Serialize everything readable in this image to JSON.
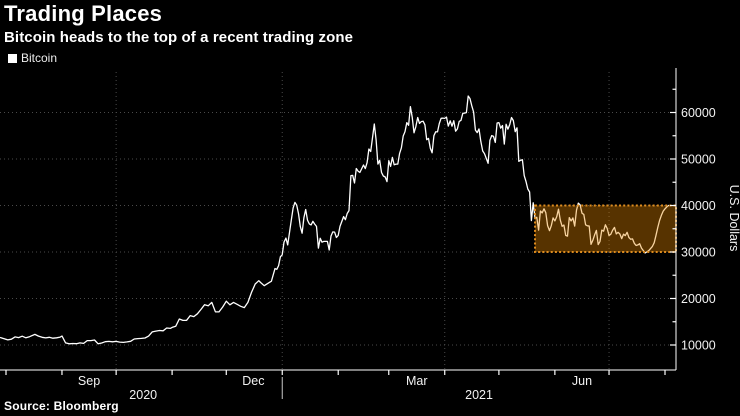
{
  "header": {
    "title": "Trading Places",
    "subtitle": "Bitcoin heads to the top of a recent trading zone"
  },
  "legend": {
    "label": "Bitcoin"
  },
  "source": "Source: Bloomberg",
  "colors": {
    "background": "#000000",
    "text": "#ffffff",
    "line": "#ffffff",
    "grid": "#4a4a4a",
    "axis": "#ffffff",
    "highlight_fill": "#ED8B00",
    "highlight_fill_opacity": 0.37,
    "highlight_border": "#DE8C1E"
  },
  "chart_data": {
    "type": "line",
    "title": "Trading Places",
    "subtitle": "Bitcoin heads to the top of a recent trading zone",
    "x_unit": "days since 2020-08-01",
    "x_range_days": [
      -3,
      371
    ],
    "grid": true,
    "legend_position": "top-left",
    "y_axis": {
      "label": "U.S. Dollars",
      "major_ticks": [
        10000,
        20000,
        30000,
        40000,
        50000,
        60000
      ],
      "minor_ticks": [
        15000,
        25000,
        35000,
        45000,
        55000,
        65000
      ],
      "range": [
        4600,
        69500
      ]
    },
    "x_axis": {
      "month_ticks_days": [
        0,
        31,
        61,
        92,
        122,
        153,
        184,
        212,
        243,
        273,
        304,
        334,
        365
      ],
      "quarter_grid_days": [
        61,
        153,
        243,
        334
      ],
      "month_labels": [
        {
          "label": "Sep",
          "day": 46
        },
        {
          "label": "Dec",
          "day": 137
        },
        {
          "label": "Mar",
          "day": 227.5
        },
        {
          "label": "Jun",
          "day": 319
        }
      ],
      "year_labels": [
        {
          "label": "2020",
          "day": 76
        },
        {
          "label": "2021",
          "day": 262
        }
      ],
      "year_divider_day": 153
    },
    "highlight_zone": {
      "from_day": 293,
      "low": 30000,
      "high": 40000,
      "fill": "#ED8B00",
      "fill_opacity": 0.37,
      "border": "#DE8C1E"
    },
    "series": [
      {
        "name": "Bitcoin",
        "color": "#ffffff",
        "points": [
          [
            -3,
            11600
          ],
          [
            -1,
            11350
          ],
          [
            1,
            11100
          ],
          [
            3,
            11250
          ],
          [
            5,
            11750
          ],
          [
            7,
            11600
          ],
          [
            9,
            11900
          ],
          [
            11,
            11550
          ],
          [
            13,
            11780
          ],
          [
            16,
            12280
          ],
          [
            18,
            11920
          ],
          [
            20,
            11660
          ],
          [
            22,
            11530
          ],
          [
            24,
            11660
          ],
          [
            26,
            11470
          ],
          [
            28,
            11540
          ],
          [
            30,
            11700
          ],
          [
            31,
            11930
          ],
          [
            33,
            10450
          ],
          [
            35,
            10250
          ],
          [
            37,
            10330
          ],
          [
            39,
            10280
          ],
          [
            41,
            10450
          ],
          [
            43,
            10340
          ],
          [
            45,
            10950
          ],
          [
            47,
            10940
          ],
          [
            49,
            11080
          ],
          [
            51,
            10250
          ],
          [
            53,
            10440
          ],
          [
            55,
            10720
          ],
          [
            57,
            10780
          ],
          [
            59,
            10690
          ],
          [
            61,
            10780
          ],
          [
            63,
            10620
          ],
          [
            65,
            10550
          ],
          [
            67,
            10670
          ],
          [
            69,
            10800
          ],
          [
            71,
            11300
          ],
          [
            73,
            11380
          ],
          [
            75,
            11420
          ],
          [
            77,
            11510
          ],
          [
            79,
            11920
          ],
          [
            81,
            12810
          ],
          [
            83,
            12990
          ],
          [
            85,
            13120
          ],
          [
            87,
            13050
          ],
          [
            89,
            13650
          ],
          [
            91,
            13560
          ],
          [
            92,
            13780
          ],
          [
            94,
            14020
          ],
          [
            96,
            15600
          ],
          [
            98,
            15300
          ],
          [
            100,
            15320
          ],
          [
            102,
            16320
          ],
          [
            104,
            16100
          ],
          [
            106,
            16720
          ],
          [
            108,
            17650
          ],
          [
            110,
            18660
          ],
          [
            112,
            18420
          ],
          [
            114,
            19160
          ],
          [
            116,
            17150
          ],
          [
            118,
            17110
          ],
          [
            120,
            18180
          ],
          [
            122,
            19420
          ],
          [
            124,
            18650
          ],
          [
            126,
            19170
          ],
          [
            128,
            18760
          ],
          [
            130,
            18320
          ],
          [
            132,
            18040
          ],
          [
            134,
            19170
          ],
          [
            136,
            21310
          ],
          [
            138,
            23110
          ],
          [
            140,
            23820
          ],
          [
            141,
            23450
          ],
          [
            143,
            22750
          ],
          [
            145,
            23240
          ],
          [
            147,
            23730
          ],
          [
            149,
            26440
          ],
          [
            150,
            26280
          ],
          [
            151,
            27080
          ],
          [
            152,
            28990
          ],
          [
            153,
            29370
          ],
          [
            154,
            32130
          ],
          [
            155,
            33000
          ],
          [
            156,
            31530
          ],
          [
            158,
            36850
          ],
          [
            159,
            39450
          ],
          [
            160,
            40670
          ],
          [
            161,
            40090
          ],
          [
            162,
            38250
          ],
          [
            163,
            35470
          ],
          [
            164,
            34050
          ],
          [
            165,
            37380
          ],
          [
            166,
            39140
          ],
          [
            167,
            36830
          ],
          [
            168,
            36050
          ],
          [
            169,
            35830
          ],
          [
            170,
            36610
          ],
          [
            171,
            36000
          ],
          [
            172,
            35510
          ],
          [
            173,
            30830
          ],
          [
            174,
            32950
          ],
          [
            175,
            32100
          ],
          [
            176,
            32280
          ],
          [
            178,
            32270
          ],
          [
            179,
            30430
          ],
          [
            180,
            33440
          ],
          [
            181,
            34320
          ],
          [
            182,
            34270
          ],
          [
            183,
            33110
          ],
          [
            184,
            33540
          ],
          [
            185,
            35510
          ],
          [
            187,
            37620
          ],
          [
            188,
            36940
          ],
          [
            189,
            38290
          ],
          [
            190,
            38900
          ],
          [
            191,
            46420
          ],
          [
            192,
            46480
          ],
          [
            193,
            44830
          ],
          [
            194,
            47960
          ],
          [
            195,
            47370
          ],
          [
            196,
            47110
          ],
          [
            198,
            48720
          ],
          [
            199,
            47930
          ],
          [
            200,
            49220
          ],
          [
            201,
            52140
          ],
          [
            202,
            51610
          ],
          [
            204,
            57530
          ],
          [
            205,
            54120
          ],
          [
            206,
            48900
          ],
          [
            207,
            49710
          ],
          [
            208,
            47110
          ],
          [
            209,
            46340
          ],
          [
            210,
            46130
          ],
          [
            211,
            45140
          ],
          [
            212,
            49630
          ],
          [
            213,
            48400
          ],
          [
            214,
            50350
          ],
          [
            215,
            48750
          ],
          [
            216,
            48900
          ],
          [
            217,
            48910
          ],
          [
            218,
            51210
          ],
          [
            219,
            52410
          ],
          [
            220,
            54940
          ],
          [
            221,
            55890
          ],
          [
            222,
            57820
          ],
          [
            223,
            57250
          ],
          [
            224,
            61240
          ],
          [
            225,
            59020
          ],
          [
            226,
            55630
          ],
          [
            227,
            56930
          ],
          [
            228,
            58930
          ],
          [
            229,
            57650
          ],
          [
            230,
            58050
          ],
          [
            231,
            58120
          ],
          [
            232,
            57360
          ],
          [
            233,
            54140
          ],
          [
            234,
            54420
          ],
          [
            235,
            52300
          ],
          [
            236,
            51330
          ],
          [
            237,
            55010
          ],
          [
            238,
            55850
          ],
          [
            239,
            55820
          ],
          [
            240,
            57630
          ],
          [
            241,
            58760
          ],
          [
            242,
            58800
          ],
          [
            243,
            58740
          ],
          [
            244,
            59010
          ],
          [
            245,
            57080
          ],
          [
            246,
            58210
          ],
          [
            247,
            57060
          ],
          [
            248,
            58240
          ],
          [
            249,
            55970
          ],
          [
            250,
            56480
          ],
          [
            251,
            58080
          ],
          [
            252,
            58330
          ],
          [
            253,
            59830
          ],
          [
            254,
            59880
          ],
          [
            255,
            59970
          ],
          [
            256,
            63540
          ],
          [
            257,
            62980
          ],
          [
            258,
            61450
          ],
          [
            259,
            60090
          ],
          [
            260,
            56220
          ],
          [
            261,
            55680
          ],
          [
            262,
            56470
          ],
          [
            263,
            53810
          ],
          [
            264,
            51730
          ],
          [
            265,
            51150
          ],
          [
            266,
            50110
          ],
          [
            267,
            49080
          ],
          [
            268,
            54030
          ],
          [
            269,
            55030
          ],
          [
            270,
            54850
          ],
          [
            271,
            53570
          ],
          [
            272,
            57750
          ],
          [
            273,
            57830
          ],
          [
            274,
            56630
          ],
          [
            275,
            57200
          ],
          [
            276,
            53210
          ],
          [
            277,
            57470
          ],
          [
            278,
            56420
          ],
          [
            279,
            57360
          ],
          [
            280,
            58930
          ],
          [
            281,
            58280
          ],
          [
            282,
            55870
          ],
          [
            283,
            56710
          ],
          [
            284,
            49500
          ],
          [
            285,
            49710
          ],
          [
            286,
            49860
          ],
          [
            287,
            46440
          ],
          [
            288,
            45170
          ],
          [
            289,
            43540
          ],
          [
            290,
            42900
          ],
          [
            291,
            36750
          ],
          [
            292,
            40590
          ],
          [
            293,
            37280
          ],
          [
            294,
            37460
          ],
          [
            295,
            34710
          ],
          [
            296,
            38810
          ],
          [
            297,
            38400
          ],
          [
            298,
            39290
          ],
          [
            299,
            38450
          ],
          [
            300,
            35680
          ],
          [
            301,
            34610
          ],
          [
            302,
            35660
          ],
          [
            303,
            37330
          ],
          [
            304,
            36690
          ],
          [
            305,
            37580
          ],
          [
            306,
            39210
          ],
          [
            307,
            36870
          ],
          [
            308,
            35530
          ],
          [
            309,
            35800
          ],
          [
            310,
            33580
          ],
          [
            311,
            33430
          ],
          [
            312,
            37400
          ],
          [
            313,
            36690
          ],
          [
            314,
            37340
          ],
          [
            315,
            35560
          ],
          [
            316,
            38980
          ],
          [
            317,
            40520
          ],
          [
            318,
            40150
          ],
          [
            319,
            38350
          ],
          [
            320,
            38090
          ],
          [
            321,
            35860
          ],
          [
            322,
            35640
          ],
          [
            323,
            35600
          ],
          [
            324,
            31650
          ],
          [
            325,
            32500
          ],
          [
            326,
            33680
          ],
          [
            327,
            34650
          ],
          [
            328,
            31600
          ],
          [
            329,
            32290
          ],
          [
            330,
            34700
          ],
          [
            331,
            34480
          ],
          [
            332,
            35850
          ],
          [
            333,
            35050
          ],
          [
            334,
            33570
          ],
          [
            335,
            33810
          ],
          [
            336,
            34680
          ],
          [
            337,
            35280
          ],
          [
            338,
            33900
          ],
          [
            339,
            34230
          ],
          [
            340,
            33880
          ],
          [
            341,
            32880
          ],
          [
            342,
            33820
          ],
          [
            343,
            33520
          ],
          [
            344,
            34240
          ],
          [
            345,
            33110
          ],
          [
            346,
            32730
          ],
          [
            347,
            32820
          ],
          [
            348,
            31880
          ],
          [
            349,
            31400
          ],
          [
            350,
            31520
          ],
          [
            351,
            31790
          ],
          [
            352,
            30840
          ],
          [
            354,
            29790
          ],
          [
            356,
            30300
          ],
          [
            358,
            31200
          ],
          [
            359,
            32000
          ],
          [
            360,
            33600
          ],
          [
            361,
            35300
          ],
          [
            362,
            36800
          ],
          [
            363,
            37900
          ],
          [
            364,
            38800
          ],
          [
            365,
            39300
          ],
          [
            366,
            39700
          ],
          [
            367,
            40000
          ]
        ]
      }
    ]
  }
}
